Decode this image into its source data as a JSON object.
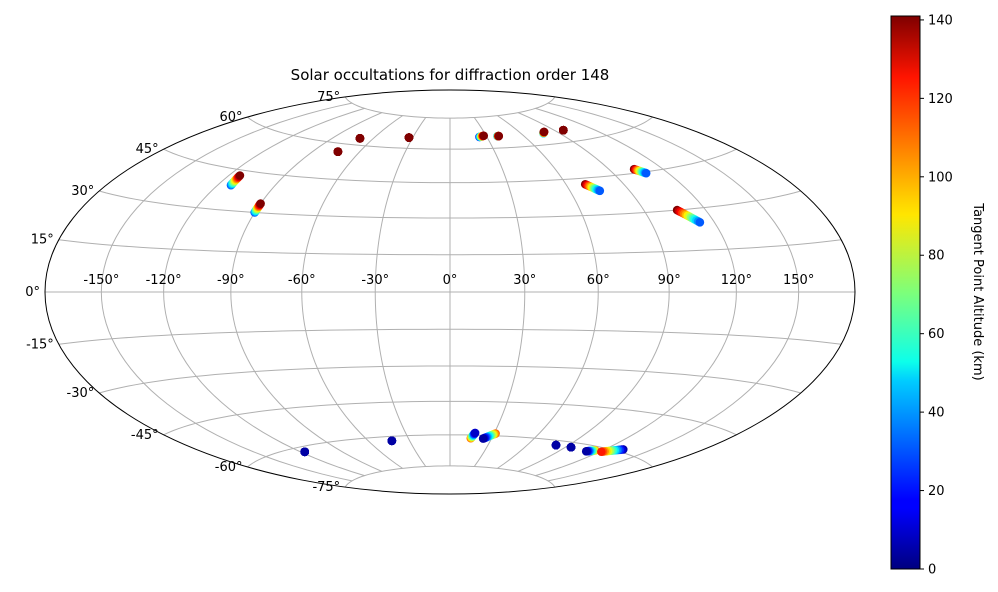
{
  "chart_data": {
    "type": "scatter",
    "projection": "hammer",
    "title": "Solar occultations for diffraction order 148",
    "colorbar_label": "Tangent Point Altitude (km)",
    "colorbar_range": [
      0,
      141
    ],
    "colorbar_ticks": [
      "0",
      "20",
      "40",
      "60",
      "80",
      "100",
      "120",
      "140"
    ],
    "colormap": "jet",
    "grid": true,
    "lon_ticks": [
      "-150°",
      "-120°",
      "-90°",
      "-60°",
      "-30°",
      "0°",
      "30°",
      "60°",
      "90°",
      "120°",
      "150°"
    ],
    "lat_ticks": [
      "75°",
      "60°",
      "45°",
      "30°",
      "15°",
      "0°",
      "-15°",
      "-30°",
      "-45°",
      "-60°",
      "-75°"
    ],
    "tracks": [
      {
        "lon_start": -113,
        "lat_start": 39.2,
        "lon_end": -114,
        "lat_end": 43,
        "alt_start": 30,
        "alt_end": 141
      },
      {
        "lon_start": -90,
        "lat_start": 30,
        "lon_end": -90,
        "lat_end": 33.5,
        "alt_start": 30,
        "alt_end": 141
      },
      {
        "lon_start": -74,
        "lat_start": 56.5,
        "lon_end": -74,
        "lat_end": 56.5,
        "alt_start": 141,
        "alt_end": 141
      },
      {
        "lon_start": -70,
        "lat_start": 63,
        "lon_end": -70,
        "lat_end": 63,
        "alt_start": 141,
        "alt_end": 141
      },
      {
        "lon_start": -33,
        "lat_start": 65,
        "lon_end": -33,
        "lat_end": 65,
        "alt_start": 141,
        "alt_end": 141
      },
      {
        "lon_start": 24,
        "lat_start": 65.5,
        "lon_end": 28,
        "lat_end": 66,
        "alt_start": 20,
        "alt_end": 141
      },
      {
        "lon_start": 39,
        "lat_start": 65.5,
        "lon_end": 40,
        "lat_end": 65.5,
        "alt_start": 30,
        "alt_end": 141
      },
      {
        "lon_start": 78,
        "lat_start": 65,
        "lon_end": 80,
        "lat_end": 65.5,
        "alt_start": 40,
        "alt_end": 141
      },
      {
        "lon_start": 97,
        "lat_start": 65,
        "lon_end": 97,
        "lat_end": 65,
        "alt_start": 141,
        "alt_end": 141
      },
      {
        "lon_start": 70,
        "lat_start": 42.5,
        "lon_end": 75,
        "lat_end": 39.5,
        "alt_start": 141,
        "alt_end": 30
      },
      {
        "lon_start": 104,
        "lat_start": 46.5,
        "lon_end": 108,
        "lat_end": 44.5,
        "alt_start": 141,
        "alt_end": 30
      },
      {
        "lon_start": 106,
        "lat_start": 30,
        "lon_end": 113,
        "lat_end": 25,
        "alt_start": 141,
        "alt_end": 30
      },
      {
        "lon_start": -117,
        "lat_start": -62,
        "lon_end": -117,
        "lat_end": -62,
        "alt_start": 5,
        "alt_end": 5
      },
      {
        "lon_start": -43,
        "lat_start": -62,
        "lon_end": -43,
        "lat_end": -62,
        "alt_start": 5,
        "alt_end": 5
      },
      {
        "lon_start": 15,
        "lat_start": -61.5,
        "lon_end": 17,
        "lat_end": -59,
        "alt_start": 110,
        "alt_end": 10
      },
      {
        "lon_start": 31,
        "lat_start": -59,
        "lon_end": 24,
        "lat_end": -61.5,
        "alt_start": 110,
        "alt_end": 5
      },
      {
        "lon_start": 81,
        "lat_start": -62,
        "lon_end": 81,
        "lat_end": -62,
        "alt_start": 5,
        "alt_end": 5
      },
      {
        "lon_start": 94,
        "lat_start": -62,
        "lon_end": 94,
        "lat_end": -62,
        "alt_start": 5,
        "alt_end": 5
      },
      {
        "lon_start": 115,
        "lat_start": -61.5,
        "lon_end": 110,
        "lat_end": -62.5,
        "alt_start": 100,
        "alt_end": 5
      },
      {
        "lon_start": 132,
        "lat_start": -59,
        "lon_end": 121,
        "lat_end": -61.5,
        "alt_start": 5,
        "alt_end": 120
      }
    ]
  }
}
